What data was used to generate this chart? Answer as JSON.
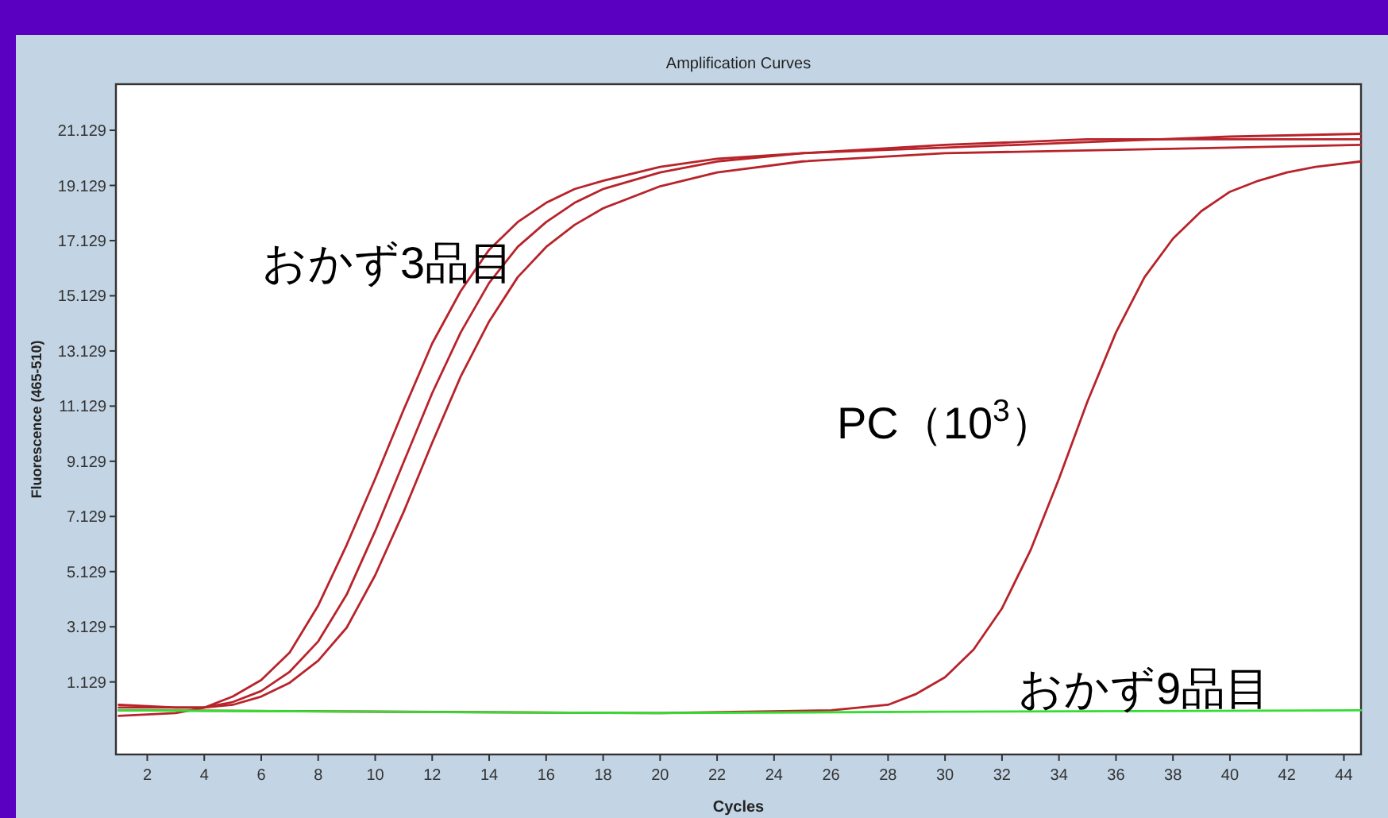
{
  "chart_data": {
    "type": "line",
    "title": "Amplification Curves",
    "xlabel": "Cycles",
    "ylabel": "Fluorescence (465-510)",
    "xlim": [
      0.9,
      44.6
    ],
    "ylim": [
      -1.5,
      22.8
    ],
    "xticks": [
      2,
      4,
      6,
      8,
      10,
      12,
      14,
      16,
      18,
      20,
      22,
      24,
      26,
      28,
      30,
      32,
      34,
      36,
      38,
      40,
      42,
      44
    ],
    "yticks": [
      1.129,
      3.129,
      5.129,
      7.129,
      9.129,
      11.129,
      13.129,
      15.129,
      17.129,
      19.129,
      21.129
    ],
    "grid": false,
    "marker": "none",
    "line_style": "solid",
    "series": [
      {
        "color": "#b8232a",
        "x": [
          1,
          3,
          4,
          5,
          6,
          7,
          8,
          9,
          10,
          11,
          12,
          13,
          14,
          15,
          16,
          17,
          18,
          20,
          22,
          25,
          30,
          35,
          40,
          44.6
        ],
        "values": [
          0.3,
          0.2,
          0.2,
          0.6,
          1.2,
          2.2,
          3.9,
          6.1,
          8.5,
          11.0,
          13.4,
          15.3,
          16.8,
          17.8,
          18.5,
          19.0,
          19.3,
          19.8,
          20.1,
          20.3,
          20.5,
          20.7,
          20.9,
          21.0
        ]
      },
      {
        "color": "#b8232a",
        "x": [
          1,
          3,
          4,
          5,
          6,
          7,
          8,
          9,
          10,
          11,
          12,
          13,
          14,
          15,
          16,
          17,
          18,
          20,
          22,
          25,
          30,
          35,
          40,
          44.6
        ],
        "values": [
          0.2,
          0.2,
          0.2,
          0.4,
          0.8,
          1.5,
          2.6,
          4.3,
          6.6,
          9.1,
          11.6,
          13.8,
          15.6,
          16.9,
          17.8,
          18.5,
          19.0,
          19.6,
          20.0,
          20.3,
          20.6,
          20.8,
          20.8,
          20.8
        ]
      },
      {
        "color": "#b8232a",
        "x": [
          1,
          3,
          4,
          5,
          6,
          7,
          8,
          9,
          10,
          11,
          12,
          13,
          14,
          15,
          16,
          17,
          18,
          20,
          22,
          25,
          30,
          35,
          40,
          44.6
        ],
        "values": [
          -0.1,
          0.0,
          0.2,
          0.3,
          0.6,
          1.1,
          1.9,
          3.1,
          5.0,
          7.3,
          9.8,
          12.2,
          14.2,
          15.8,
          16.9,
          17.7,
          18.3,
          19.1,
          19.6,
          20.0,
          20.3,
          20.4,
          20.5,
          20.6
        ]
      },
      {
        "color": "#b8232a",
        "x": [
          1,
          20,
          26,
          28,
          29,
          30,
          31,
          32,
          33,
          34,
          35,
          36,
          37,
          38,
          39,
          40,
          41,
          42,
          43,
          44.6
        ],
        "values": [
          0.1,
          0.0,
          0.1,
          0.3,
          0.7,
          1.3,
          2.3,
          3.8,
          5.9,
          8.5,
          11.3,
          13.8,
          15.8,
          17.2,
          18.2,
          18.9,
          19.3,
          19.6,
          19.8,
          20.0
        ]
      },
      {
        "color": "#33dd33",
        "x": [
          1,
          10,
          20,
          30,
          44.6
        ],
        "values": [
          0.1,
          0.05,
          0.0,
          0.05,
          0.1
        ]
      }
    ],
    "annotations": [
      "おかず3品目",
      "PC（10$^{3}$）",
      "おかず9品目"
    ]
  }
}
